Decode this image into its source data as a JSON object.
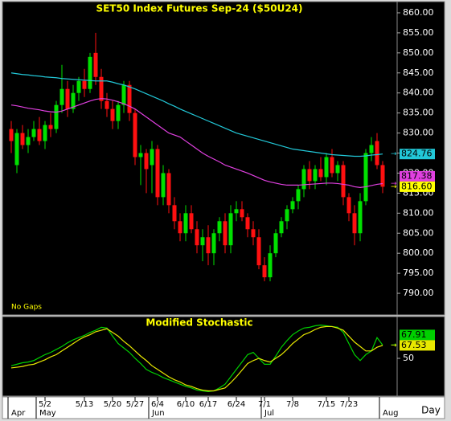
{
  "chart_data": [
    {
      "type": "candlestick",
      "title": "SET50 Index Futures Sep-24 ($50U24)",
      "annotation": "No Gaps",
      "xlabel": "Day",
      "categories": [
        null,
        null,
        null,
        null,
        null,
        null,
        "5/2",
        null,
        null,
        null,
        null,
        null,
        null,
        "5/13",
        null,
        null,
        null,
        null,
        "5/20",
        null,
        null,
        null,
        "5/27",
        null,
        null,
        null,
        "6/4",
        null,
        null,
        null,
        null,
        "6/10",
        null,
        null,
        null,
        "6/17",
        null,
        null,
        null,
        null,
        "6/24",
        null,
        null,
        null,
        null,
        "7/1",
        null,
        null,
        null,
        null,
        "7/8",
        null,
        null,
        null,
        null,
        null,
        "7/15",
        null,
        null,
        null,
        "7/23",
        null,
        null,
        null,
        null,
        null,
        null
      ],
      "months": [
        "Apr",
        null,
        null,
        null,
        null,
        "May",
        null,
        null,
        null,
        null,
        null,
        null,
        null,
        null,
        null,
        null,
        null,
        null,
        null,
        null,
        null,
        null,
        null,
        null,
        null,
        "Jun",
        null,
        null,
        null,
        null,
        null,
        null,
        null,
        null,
        null,
        null,
        null,
        null,
        null,
        null,
        null,
        null,
        null,
        null,
        null,
        "Jul",
        null,
        null,
        null,
        null,
        null,
        null,
        null,
        null,
        null,
        null,
        null,
        null,
        null,
        null,
        null,
        null,
        null,
        null,
        null,
        null,
        "Aug"
      ],
      "open": [
        831,
        822,
        830,
        827,
        829,
        831,
        828,
        832,
        831,
        837,
        841,
        836,
        840,
        843,
        841,
        850,
        844,
        838,
        836,
        833,
        837,
        842,
        835,
        824,
        825,
        822,
        826,
        814,
        820,
        812,
        808,
        805,
        810,
        806,
        802,
        804,
        800,
        805,
        808,
        802,
        810,
        811,
        809,
        806,
        804,
        797,
        794,
        800,
        805,
        808,
        811,
        813,
        816,
        821,
        818,
        821,
        819,
        824,
        820,
        822,
        814,
        810,
        805,
        813,
        825,
        828,
        822
      ],
      "high": [
        833,
        831,
        832,
        831,
        833,
        834,
        833,
        835,
        838,
        847,
        843,
        842,
        844,
        846,
        850,
        855,
        846,
        840,
        838,
        838,
        843,
        843,
        836,
        827,
        826,
        828,
        827,
        822,
        821,
        814,
        810,
        812,
        812,
        808,
        806,
        807,
        806,
        809,
        810,
        812,
        813,
        813,
        810,
        808,
        806,
        799,
        802,
        806,
        809,
        812,
        814,
        817,
        822,
        823,
        822,
        824,
        825,
        826,
        823,
        823,
        815,
        812,
        815,
        826,
        829,
        830,
        823
      ],
      "low": [
        825,
        820,
        826,
        825,
        828,
        827,
        826,
        829,
        830,
        835,
        834,
        835,
        838,
        839,
        840,
        842,
        836,
        834,
        831,
        831,
        835,
        833,
        822,
        817,
        815,
        815,
        812,
        812,
        810,
        806,
        803,
        803,
        805,
        800,
        798,
        797,
        797,
        803,
        800,
        800,
        808,
        808,
        804,
        802,
        796,
        793,
        793,
        799,
        804,
        806,
        810,
        811,
        814,
        816,
        816,
        818,
        817,
        819,
        818,
        812,
        808,
        802,
        803,
        812,
        823,
        821,
        815
      ],
      "close": [
        828,
        830,
        827,
        829,
        831,
        828,
        832,
        831,
        837,
        841,
        836,
        840,
        843,
        841,
        849,
        844,
        838,
        836,
        833,
        837,
        842,
        835,
        824,
        825,
        821,
        826,
        814,
        820,
        812,
        808,
        805,
        810,
        806,
        802,
        804,
        800,
        805,
        808,
        802,
        810,
        811,
        809,
        806,
        804,
        797,
        794,
        800,
        805,
        808,
        811,
        813,
        816,
        821,
        818,
        821,
        819,
        824,
        820,
        822,
        814,
        810,
        805,
        813,
        825,
        827,
        822,
        816.6
      ],
      "up_color": "#00e000",
      "down_color": "#ff1010",
      "last_label": "816.60",
      "last_color": "#ffff00",
      "series": [
        {
          "color": "#22c8d8",
          "last_label": "824.76",
          "values": [
            845,
            844.8,
            844.6,
            844.5,
            844.3,
            844.2,
            844,
            843.9,
            843.8,
            843.6,
            843.5,
            843.4,
            843.3,
            843.2,
            843.1,
            843,
            843,
            843,
            842.7,
            842.3,
            842,
            841.5,
            841,
            840.4,
            839.8,
            839.2,
            838.6,
            838,
            837.3,
            836.7,
            836,
            835.4,
            834.8,
            834.2,
            833.6,
            833,
            832.4,
            831.8,
            831.2,
            830.6,
            830,
            829.6,
            829.2,
            828.8,
            828.4,
            828,
            827.6,
            827.2,
            826.8,
            826.4,
            826,
            825.8,
            825.6,
            825.4,
            825.2,
            825,
            824.8,
            824.6,
            824.5,
            824.4,
            824.3,
            824.2,
            824.2,
            824.3,
            824.5,
            824.6,
            824.76
          ]
        },
        {
          "color": "#e040e0",
          "last_label": "817.38",
          "values": [
            837,
            836.8,
            836.5,
            836.2,
            836,
            835.8,
            835.5,
            835.3,
            835.2,
            835.5,
            836,
            836.5,
            837,
            837.5,
            838,
            838.4,
            838.6,
            838.5,
            838.2,
            837.8,
            837.3,
            836.7,
            836,
            835,
            834,
            833,
            832,
            831,
            830,
            829.5,
            829,
            828,
            827,
            826,
            825,
            824.2,
            823.5,
            822.8,
            822,
            821.5,
            821,
            820.5,
            820,
            819.4,
            818.8,
            818.2,
            817.8,
            817.5,
            817.2,
            817,
            817,
            817,
            817.1,
            817.2,
            817.3,
            817.4,
            817.5,
            817.5,
            817.4,
            817.2,
            817,
            816.6,
            816.4,
            816.6,
            816.9,
            817.2,
            817.38
          ]
        }
      ],
      "ylim": [
        785,
        862.6
      ],
      "yticks": [
        {
          "value": 790,
          "label": "790.00"
        },
        {
          "value": 795,
          "label": "795.00"
        },
        {
          "value": 800,
          "label": "800.00"
        },
        {
          "value": 805,
          "label": "805.00"
        },
        {
          "value": 810,
          "label": "810.00"
        },
        {
          "value": 815,
          "label": "815.00"
        },
        {
          "value": 820,
          "label": "820.00"
        },
        {
          "value": 825,
          "label": "825.00"
        },
        {
          "value": 830,
          "label": "830.00"
        },
        {
          "value": 835,
          "label": "835.00"
        },
        {
          "value": 840,
          "label": "840.00"
        },
        {
          "value": 845,
          "label": "845.00"
        },
        {
          "value": 850,
          "label": "850.00"
        },
        {
          "value": 855,
          "label": "855.00"
        },
        {
          "value": 860,
          "label": "860.00"
        }
      ]
    },
    {
      "type": "line",
      "title": "Modified Stochastic",
      "series": [
        {
          "color": "#00d000",
          "last_label": "67.91",
          "values": [
            40,
            42,
            44,
            45,
            47,
            51,
            55,
            58,
            62,
            66,
            71,
            75,
            78,
            81,
            85,
            88,
            92,
            91,
            80,
            70,
            64,
            58,
            50,
            43,
            35,
            31,
            28,
            24,
            21,
            18,
            15,
            12,
            10,
            7,
            6,
            5,
            6,
            10,
            15,
            25,
            35,
            45,
            55,
            58,
            50,
            42,
            42,
            53,
            65,
            74,
            82,
            87,
            91,
            92,
            94,
            95,
            94,
            93,
            92,
            85,
            70,
            55,
            47,
            55,
            60,
            78,
            67.91
          ]
        },
        {
          "color": "#e8e800",
          "last_label": "67.53",
          "values": [
            37,
            38,
            39,
            41,
            42,
            45,
            48,
            52,
            55,
            60,
            65,
            70,
            75,
            79,
            82,
            86,
            88,
            90,
            85,
            80,
            73,
            67,
            60,
            53,
            47,
            40,
            35,
            30,
            25,
            21,
            18,
            14,
            12,
            9,
            7,
            6,
            6,
            8,
            10,
            17,
            25,
            34,
            43,
            47,
            50,
            47,
            45,
            50,
            55,
            62,
            70,
            76,
            82,
            85,
            89,
            92,
            93,
            93,
            91,
            88,
            80,
            72,
            66,
            60,
            60,
            65,
            67.53
          ]
        }
      ],
      "ylim": [
        0,
        100
      ],
      "yticks": [
        50
      ]
    }
  ]
}
